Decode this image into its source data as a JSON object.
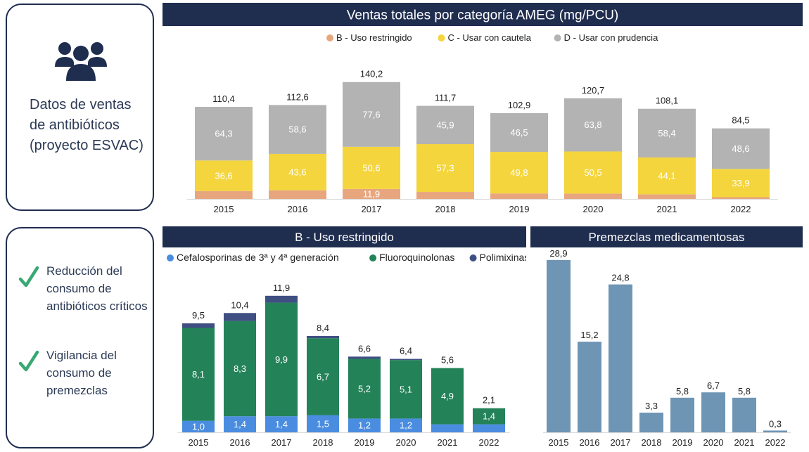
{
  "sidebar": {
    "title": "Datos de ventas de antibióticos (proyecto ESVAC)",
    "icon": "people-group-icon",
    "checks": [
      {
        "icon": "check-icon",
        "text": "Reducción del consumo de antibióticos críticos"
      },
      {
        "icon": "check-icon",
        "text": "Vigilancia del consumo de premezclas"
      }
    ]
  },
  "colors": {
    "navy": "#1f2d4f",
    "B": "#e8a67f",
    "C": "#f4d53d",
    "D": "#b3b3b3",
    "cefalosporinas": "#4a8de0",
    "fluoroquinolonas": "#238258",
    "polimixinas": "#3f4f82",
    "premezclas": "#6f95b5",
    "check": "#38a873"
  },
  "chart_data": [
    {
      "id": "top",
      "type": "bar",
      "stacked": true,
      "title": "Ventas totales por categoría AMEG (mg/PCU)",
      "legend_position": "top",
      "categories": [
        "2015",
        "2016",
        "2017",
        "2018",
        "2019",
        "2020",
        "2021",
        "2022"
      ],
      "series": [
        {
          "name": "B - Uso restringido",
          "values": [
            9.5,
            10.4,
            11.9,
            8.4,
            6.6,
            6.4,
            5.6,
            2.1
          ],
          "labels": [
            "",
            "",
            "11,9",
            "",
            "",
            "",
            "",
            ""
          ]
        },
        {
          "name": "C - Usar con cautela",
          "values": [
            36.6,
            43.6,
            50.6,
            57.3,
            49.8,
            50.5,
            44.1,
            33.9
          ],
          "labels": [
            "36,6",
            "43,6",
            "50,6",
            "57,3",
            "49,8",
            "50,5",
            "44,1",
            "33,9"
          ]
        },
        {
          "name": "D - Usar con prudencia",
          "values": [
            64.3,
            58.6,
            77.6,
            45.9,
            46.5,
            63.8,
            58.4,
            48.6
          ],
          "labels": [
            "64,3",
            "58,6",
            "77,6",
            "45,9",
            "46,5",
            "63,8",
            "58,4",
            "48,6"
          ]
        }
      ],
      "totals": [
        "110,4",
        "112,6",
        "140,2",
        "111,7",
        "102,9",
        "120,7",
        "108,1",
        "84,5"
      ],
      "total_values": [
        110.4,
        112.6,
        140.2,
        111.7,
        102.9,
        120.7,
        108.1,
        84.5
      ],
      "ylim": [
        0,
        150
      ],
      "grid": false
    },
    {
      "id": "b",
      "type": "bar",
      "stacked": true,
      "title": "B - Uso restringido",
      "legend_position": "top",
      "categories": [
        "2015",
        "2016",
        "2017",
        "2018",
        "2019",
        "2020",
        "2021",
        "2022"
      ],
      "series": [
        {
          "name": "Cefalosporinas de 3ª y 4ª generación",
          "values": [
            1.0,
            1.4,
            1.4,
            1.5,
            1.2,
            1.2,
            0.7,
            0.7
          ],
          "labels": [
            "1,0",
            "1,4",
            "1,4",
            "1,5",
            "1,2",
            "1,2",
            "",
            ""
          ]
        },
        {
          "name": "Fluoroquinolonas",
          "values": [
            8.1,
            8.3,
            9.9,
            6.7,
            5.2,
            5.1,
            4.9,
            1.4
          ],
          "labels": [
            "8,1",
            "8,3",
            "9,9",
            "6,7",
            "5,2",
            "5,1",
            "4,9",
            "1,4"
          ]
        },
        {
          "name": "Polimixinas",
          "values": [
            0.4,
            0.7,
            0.6,
            0.2,
            0.2,
            0.1,
            0.0,
            0.0
          ],
          "labels": [
            "",
            "",
            "",
            "",
            "",
            "",
            "",
            ""
          ]
        }
      ],
      "totals": [
        "9,5",
        "10,4",
        "11,9",
        "8,4",
        "6,6",
        "6,4",
        "5,6",
        "2,1"
      ],
      "total_values": [
        9.5,
        10.4,
        11.9,
        8.4,
        6.6,
        6.4,
        5.6,
        2.1
      ],
      "ylim": [
        0,
        12.5
      ],
      "grid": false
    },
    {
      "id": "p",
      "type": "bar",
      "stacked": false,
      "title": "Premezclas medicamentosas",
      "categories": [
        "2015",
        "2016",
        "2017",
        "2018",
        "2019",
        "2020",
        "2021",
        "2022"
      ],
      "series": [
        {
          "values": [
            28.9,
            15.2,
            24.8,
            3.3,
            5.8,
            6.7,
            5.8,
            0.3
          ],
          "labels": [
            "28,9",
            "15,2",
            "24,8",
            "3,3",
            "5,8",
            "6,7",
            "5,8",
            "0,3"
          ]
        }
      ],
      "ylim": [
        0,
        29
      ],
      "grid": false
    }
  ]
}
